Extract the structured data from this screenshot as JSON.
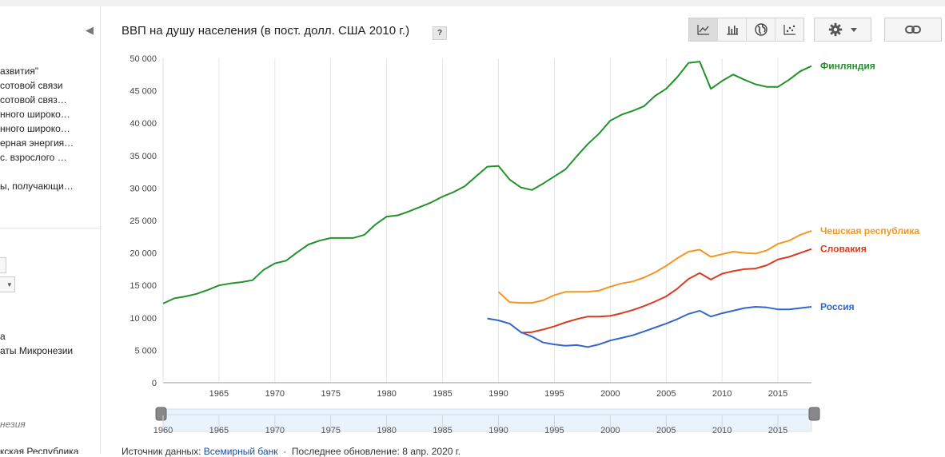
{
  "sidebar": {
    "items_a": [
      "азвития\"",
      "сотовой связи",
      "сотовой связ…",
      "нного широко…",
      "нного широко…",
      "ерная энергия…",
      "с. взрослого …"
    ],
    "item_b": "ы, получающи…",
    "region_a": "а",
    "region_b": "аты Микронезии",
    "section_label": "незия",
    "bottom_item": "кская Республика"
  },
  "header": {
    "title": "ВВП на душу населения (в пост. долл. США 2010 г.)",
    "help": "?"
  },
  "toolbar": {
    "active_view": "line"
  },
  "footer": {
    "source_label": "Источник данных:",
    "source_link": "Всемирный банк",
    "updated": "Последнее обновление: 8 апр. 2020 г."
  },
  "chart_data": {
    "type": "line",
    "title": "ВВП на душу населения (в пост. долл. США 2010 г.)",
    "xlim": [
      1960,
      2018
    ],
    "ylim": [
      0,
      50000
    ],
    "yticks": [
      0,
      5000,
      10000,
      15000,
      20000,
      25000,
      30000,
      35000,
      40000,
      45000,
      50000
    ],
    "ytick_labels": [
      "0",
      "5 000",
      "10 000",
      "15 000",
      "20 000",
      "25 000",
      "30 000",
      "35 000",
      "40 000",
      "45 000",
      "50 000"
    ],
    "xticks": [
      1965,
      1970,
      1975,
      1980,
      1985,
      1990,
      1995,
      2000,
      2005,
      2010,
      2015
    ],
    "xtick_labels": [
      "1965",
      "1970",
      "1975",
      "1980",
      "1985",
      "1990",
      "1995",
      "2000",
      "2005",
      "2010",
      "2015"
    ],
    "range_labels": [
      "1960",
      "1965",
      "1970",
      "1975",
      "1980",
      "1985",
      "1990",
      "1995",
      "2000",
      "2005",
      "2010",
      "2015"
    ],
    "grid": "vertical",
    "legend": "right, at line ends",
    "series": [
      {
        "name": "Финляндия",
        "color": "#22922b",
        "x": [
          1960,
          1961,
          1962,
          1963,
          1964,
          1965,
          1966,
          1967,
          1968,
          1969,
          1970,
          1971,
          1972,
          1973,
          1974,
          1975,
          1976,
          1977,
          1978,
          1979,
          1980,
          1981,
          1982,
          1983,
          1984,
          1985,
          1986,
          1987,
          1988,
          1989,
          1990,
          1991,
          1992,
          1993,
          1994,
          1995,
          1996,
          1997,
          1998,
          1999,
          2000,
          2001,
          2002,
          2003,
          2004,
          2005,
          2006,
          2007,
          2008,
          2009,
          2010,
          2011,
          2012,
          2013,
          2014,
          2015,
          2016,
          2017,
          2018
        ],
        "values": [
          12200,
          13000,
          13300,
          13700,
          14300,
          15000,
          15300,
          15500,
          15800,
          17400,
          18400,
          18800,
          20100,
          21300,
          21900,
          22300,
          22300,
          22300,
          22800,
          24400,
          25600,
          25800,
          26400,
          27100,
          27800,
          28700,
          29400,
          30300,
          31800,
          33300,
          33400,
          31300,
          30100,
          29700,
          30700,
          31800,
          32900,
          34900,
          36800,
          38400,
          40400,
          41300,
          41900,
          42600,
          44200,
          45300,
          47100,
          49300,
          49500,
          45300,
          46500,
          47500,
          46700,
          46000,
          45600,
          45600,
          46700,
          48000,
          48800
        ]
      },
      {
        "name": "Чешская республика",
        "color": "#f5961e",
        "x": [
          1990,
          1991,
          1992,
          1993,
          1994,
          1995,
          1996,
          1997,
          1998,
          1999,
          2000,
          2001,
          2002,
          2003,
          2004,
          2005,
          2006,
          2007,
          2008,
          2009,
          2010,
          2011,
          2012,
          2013,
          2014,
          2015,
          2016,
          2017,
          2018
        ],
        "values": [
          14000,
          12400,
          12300,
          12300,
          12700,
          13500,
          14000,
          14000,
          14000,
          14200,
          14800,
          15300,
          15600,
          16200,
          17000,
          18000,
          19200,
          20200,
          20500,
          19400,
          19800,
          20200,
          20000,
          19900,
          20400,
          21400,
          21900,
          22800,
          23400
        ]
      },
      {
        "name": "Словакия",
        "color": "#dc3a1f",
        "x": [
          1992,
          1993,
          1994,
          1995,
          1996,
          1997,
          1998,
          1999,
          2000,
          2001,
          2002,
          2003,
          2004,
          2005,
          2006,
          2007,
          2008,
          2009,
          2010,
          2011,
          2012,
          2013,
          2014,
          2015,
          2016,
          2017,
          2018
        ],
        "values": [
          7700,
          7800,
          8200,
          8700,
          9300,
          9800,
          10200,
          10200,
          10300,
          10700,
          11200,
          11800,
          12500,
          13300,
          14500,
          16000,
          16900,
          15900,
          16800,
          17200,
          17500,
          17600,
          18100,
          19000,
          19400,
          20000,
          20600
        ]
      },
      {
        "name": "Россия",
        "color": "#3366cc",
        "x": [
          1989,
          1990,
          1991,
          1992,
          1993,
          1994,
          1995,
          1996,
          1997,
          1998,
          1999,
          2000,
          2001,
          2002,
          2003,
          2004,
          2005,
          2006,
          2007,
          2008,
          2009,
          2010,
          2011,
          2012,
          2013,
          2014,
          2015,
          2016,
          2017,
          2018
        ],
        "values": [
          9900,
          9600,
          9100,
          7800,
          7100,
          6200,
          5900,
          5700,
          5800,
          5500,
          5900,
          6500,
          6900,
          7300,
          7900,
          8500,
          9100,
          9800,
          10600,
          11100,
          10200,
          10700,
          11100,
          11500,
          11700,
          11600,
          11300,
          11300,
          11500,
          11700
        ]
      }
    ]
  }
}
